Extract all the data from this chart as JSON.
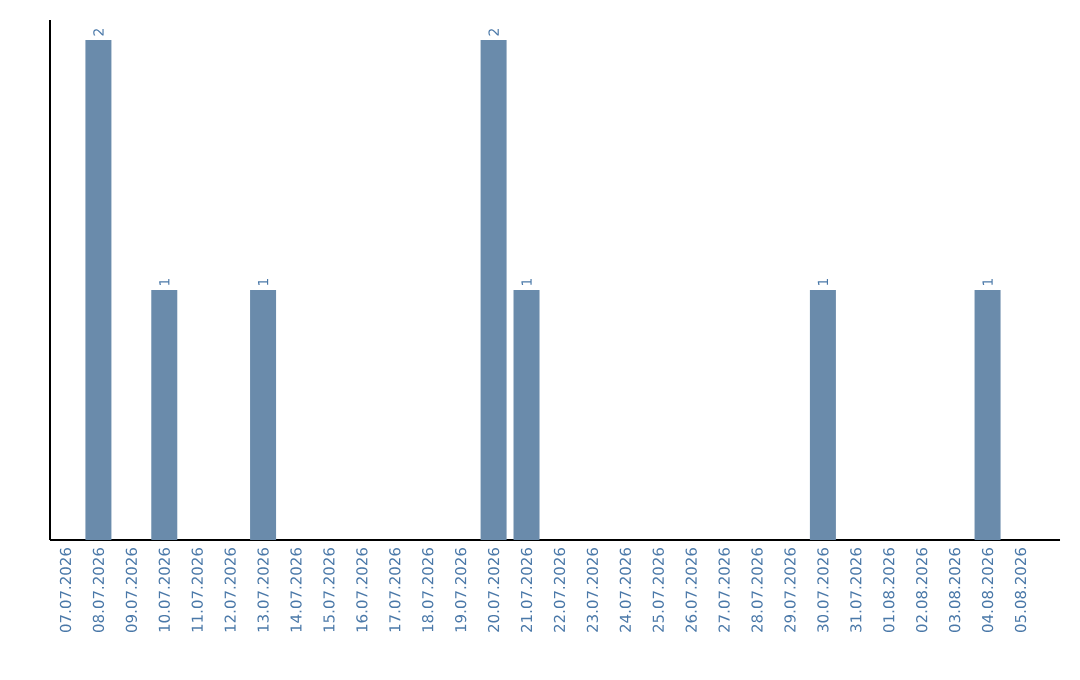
{
  "chart_data": {
    "type": "bar",
    "categories": [
      "07.07.2026",
      "08.07.2026",
      "09.07.2026",
      "10.07.2026",
      "11.07.2026",
      "12.07.2026",
      "13.07.2026",
      "14.07.2026",
      "15.07.2026",
      "16.07.2026",
      "17.07.2026",
      "18.07.2026",
      "19.07.2026",
      "20.07.2026",
      "21.07.2026",
      "22.07.2026",
      "23.07.2026",
      "24.07.2026",
      "25.07.2026",
      "26.07.2026",
      "27.07.2026",
      "28.07.2026",
      "29.07.2026",
      "30.07.2026",
      "31.07.2026",
      "01.08.2026",
      "02.08.2026",
      "03.08.2026",
      "04.08.2026",
      "05.08.2026"
    ],
    "values": [
      0,
      2,
      0,
      1,
      0,
      0,
      1,
      0,
      0,
      0,
      0,
      0,
      0,
      2,
      1,
      0,
      0,
      0,
      0,
      0,
      0,
      0,
      0,
      1,
      0,
      0,
      0,
      0,
      1,
      0
    ],
    "value_labels": [
      null,
      "2",
      null,
      "1",
      null,
      null,
      "1",
      null,
      null,
      null,
      null,
      null,
      null,
      "2",
      "1",
      null,
      null,
      null,
      null,
      null,
      null,
      null,
      null,
      "1",
      null,
      null,
      null,
      null,
      "1",
      null
    ],
    "color": "#6a8bab",
    "tick_labels": "x"
  }
}
